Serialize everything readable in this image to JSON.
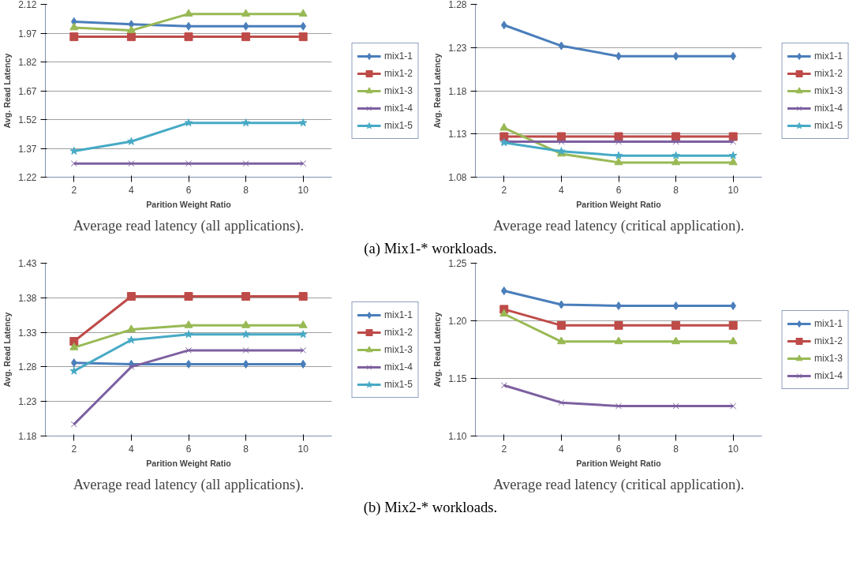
{
  "chart_data": [
    {
      "type": "line",
      "xlabel": "Parition Weight Ratio",
      "ylabel": "Avg. Read Latency",
      "categories": [
        "2",
        "4",
        "6",
        "8",
        "10"
      ],
      "ylim": [
        1.22,
        2.12
      ],
      "yticks": [
        1.22,
        1.37,
        1.52,
        1.67,
        1.82,
        1.97,
        2.12
      ],
      "grid": "y",
      "legend": "right",
      "annotations": [
        "Average read latency (all applications)."
      ],
      "series": [
        {
          "name": "mix1-1",
          "color": "#4a7ebb",
          "marker": "diamond",
          "values": [
            2.03,
            2.016,
            2.006,
            2.006,
            2.006
          ]
        },
        {
          "name": "mix1-2",
          "color": "#be4b48",
          "marker": "square",
          "values": [
            1.951,
            1.951,
            1.951,
            1.951,
            1.951
          ]
        },
        {
          "name": "mix1-3",
          "color": "#98b954",
          "marker": "triangle",
          "values": [
            1.999,
            1.984,
            2.07,
            2.07,
            2.07
          ]
        },
        {
          "name": "mix1-4",
          "color": "#7d60a0",
          "marker": "cross",
          "values": [
            1.291,
            1.291,
            1.291,
            1.291,
            1.291
          ]
        },
        {
          "name": "mix1-5",
          "color": "#46aac5",
          "marker": "star",
          "values": [
            1.356,
            1.406,
            1.503,
            1.503,
            1.503
          ]
        }
      ]
    },
    {
      "type": "line",
      "xlabel": "Parition Weight Ratio",
      "ylabel": "Avg. Read Latency",
      "categories": [
        "2",
        "4",
        "6",
        "8",
        "10"
      ],
      "ylim": [
        1.08,
        1.28
      ],
      "yticks": [
        1.08,
        1.13,
        1.18,
        1.23,
        1.28
      ],
      "grid": "y",
      "legend": "right",
      "annotations": [
        "Average read latency (critical application).",
        "(a) Mix1-* workloads."
      ],
      "series": [
        {
          "name": "mix1-1",
          "color": "#4a7ebb",
          "marker": "diamond",
          "values": [
            1.256,
            1.232,
            1.22,
            1.22,
            1.22
          ]
        },
        {
          "name": "mix1-2",
          "color": "#be4b48",
          "marker": "square",
          "values": [
            1.127,
            1.127,
            1.127,
            1.127,
            1.127
          ]
        },
        {
          "name": "mix1-3",
          "color": "#98b954",
          "marker": "triangle",
          "values": [
            1.137,
            1.107,
            1.097,
            1.097,
            1.097
          ]
        },
        {
          "name": "mix1-4",
          "color": "#7d60a0",
          "marker": "cross",
          "values": [
            1.121,
            1.121,
            1.121,
            1.121,
            1.121
          ]
        },
        {
          "name": "mix1-5",
          "color": "#46aac5",
          "marker": "star",
          "values": [
            1.12,
            1.11,
            1.105,
            1.105,
            1.105
          ]
        }
      ]
    },
    {
      "type": "line",
      "xlabel": "Parition Weight Ratio",
      "ylabel": "Avg. Read Latency",
      "categories": [
        "2",
        "4",
        "6",
        "8",
        "10"
      ],
      "ylim": [
        1.18,
        1.43
      ],
      "yticks": [
        1.18,
        1.23,
        1.28,
        1.33,
        1.38,
        1.43
      ],
      "grid": "y",
      "legend": "right",
      "annotations": [
        "Average read latency (all applications)."
      ],
      "series": [
        {
          "name": "mix1-1",
          "color": "#4a7ebb",
          "marker": "diamond",
          "values": [
            1.286,
            1.284,
            1.284,
            1.284,
            1.284
          ]
        },
        {
          "name": "mix1-2",
          "color": "#be4b48",
          "marker": "square",
          "values": [
            1.317,
            1.382,
            1.382,
            1.382,
            1.382
          ]
        },
        {
          "name": "mix1-3",
          "color": "#98b954",
          "marker": "triangle",
          "values": [
            1.308,
            1.334,
            1.34,
            1.34,
            1.34
          ]
        },
        {
          "name": "mix1-4",
          "color": "#7d60a0",
          "marker": "cross",
          "values": [
            1.197,
            1.28,
            1.304,
            1.304,
            1.304
          ]
        },
        {
          "name": "mix1-5",
          "color": "#46aac5",
          "marker": "star",
          "values": [
            1.274,
            1.319,
            1.327,
            1.327,
            1.327
          ]
        }
      ]
    },
    {
      "type": "line",
      "xlabel": "Parition Weight Ratio",
      "ylabel": "Avg. Read Latency",
      "categories": [
        "2",
        "4",
        "6",
        "8",
        "10"
      ],
      "ylim": [
        1.1,
        1.25
      ],
      "yticks": [
        {
          "value": 1.1,
          "label": "1.10"
        },
        1.15,
        {
          "value": 1.2,
          "label": "1.20"
        },
        1.25
      ],
      "grid": "y",
      "legend": "right",
      "annotations": [
        "Average read latency (critical application).",
        "(b) Mix2-* workloads."
      ],
      "series": [
        {
          "name": "mix1-1",
          "color": "#4a7ebb",
          "marker": "diamond",
          "values": [
            1.226,
            1.214,
            1.213,
            1.213,
            1.213
          ]
        },
        {
          "name": "mix1-2",
          "color": "#be4b48",
          "marker": "square",
          "values": [
            1.21,
            1.196,
            1.196,
            1.196,
            1.196
          ]
        },
        {
          "name": "mix1-3",
          "color": "#98b954",
          "marker": "triangle",
          "values": [
            1.206,
            1.182,
            1.182,
            1.182,
            1.182
          ]
        },
        {
          "name": "mix1-4",
          "color": "#7d60a0",
          "marker": "cross",
          "values": [
            1.144,
            1.129,
            1.126,
            1.126,
            1.126
          ]
        }
      ]
    }
  ]
}
